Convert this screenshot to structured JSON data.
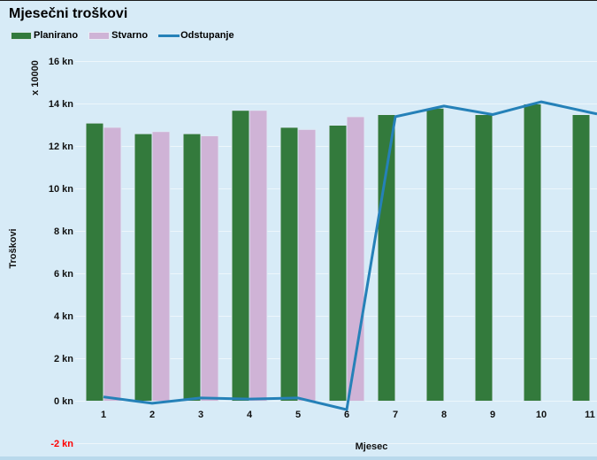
{
  "title": "Mjesečni troškovi",
  "legend": [
    {
      "label": "Planirano",
      "type": "bar",
      "color": "#337a3c"
    },
    {
      "label": "Stvarno",
      "type": "bar",
      "color": "#cfb3d6"
    },
    {
      "label": "Odstupanje",
      "type": "line",
      "color": "#2581b8"
    }
  ],
  "axes": {
    "y_title": "Troškovi",
    "y_multiplier_note": "x 10000",
    "y_ticks": [
      "16 kn",
      "14 kn",
      "12 kn",
      "10 kn",
      "8 kn",
      "6 kn",
      "4 kn",
      "2 kn",
      "0 kn",
      "-2 kn"
    ],
    "y_max": 16,
    "y_min": -2,
    "y_step": 2,
    "negative_tick_color": "#ff0000",
    "x_title": "Mjesec",
    "x_ticks": [
      "1",
      "2",
      "3",
      "4",
      "5",
      "6",
      "7",
      "8",
      "9",
      "10",
      "11"
    ]
  },
  "chart_data": {
    "type": "bar+line",
    "title": "Mjesečni troškovi",
    "xlabel": "Mjesec",
    "ylabel": "Troškovi",
    "y_unit": "kn",
    "y_multiplier": "x 10000",
    "ylim": [
      -2,
      16
    ],
    "grid": true,
    "legend_position": "top-left",
    "categories": [
      1,
      2,
      3,
      4,
      5,
      6,
      7,
      8,
      9,
      10,
      11
    ],
    "series": [
      {
        "name": "Planirano",
        "type": "bar",
        "color": "#337a3c",
        "values": [
          13.1,
          12.6,
          12.6,
          13.7,
          12.9,
          13.0,
          13.5,
          13.8,
          13.5,
          14.0,
          13.5
        ]
      },
      {
        "name": "Stvarno",
        "type": "bar",
        "color": "#cfb3d6",
        "values": [
          12.9,
          12.7,
          12.5,
          13.7,
          12.8,
          13.4,
          null,
          null,
          null,
          null,
          null
        ]
      },
      {
        "name": "Odstupanje",
        "type": "line",
        "color": "#2581b8",
        "values": [
          0.2,
          -0.1,
          0.15,
          0.1,
          0.15,
          -0.4,
          13.4,
          13.9,
          13.5,
          14.1,
          13.6
        ]
      }
    ]
  },
  "colors": {
    "background": "#d7ebf7",
    "bottom_strip": "#b9d9ec",
    "top_border": "#1a1a1a",
    "gridline": "rgba(255,255,255,0.55)",
    "bar_outline": "#dceaf5",
    "text": "#000000"
  }
}
